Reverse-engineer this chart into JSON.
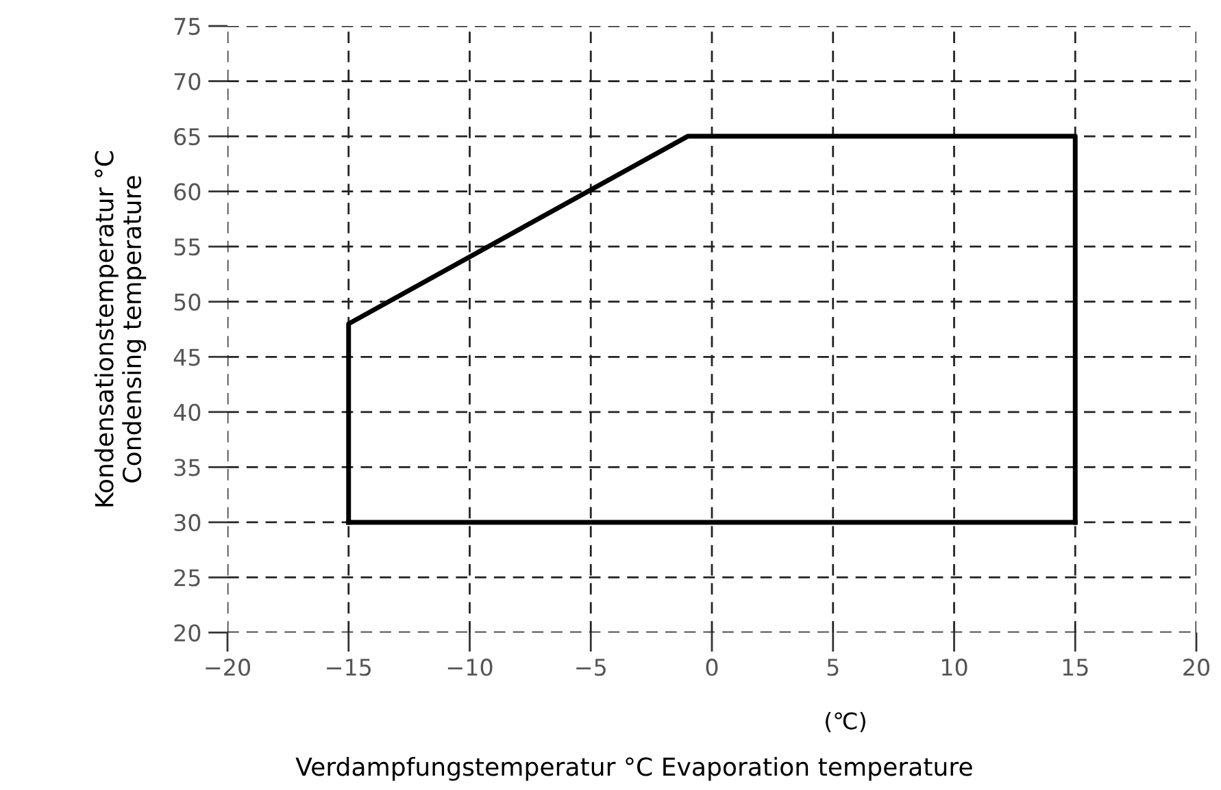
{
  "chart_data": {
    "type": "line",
    "xlabel": "Verdampfungstemperatur °C Evaporation temperature",
    "ylabel": "Kondensationstemperatur °C\nCondensing temperature",
    "annotations": [
      "(℃)"
    ],
    "series": [
      {
        "color": "#000000",
        "x": [
          -15,
          -15,
          -1,
          15,
          15
        ],
        "values": [
          30,
          48,
          65,
          65,
          30
        ]
      },
      {
        "color": "#000000",
        "x": [
          -15,
          15
        ],
        "values": [
          30,
          30
        ]
      }
    ],
    "xlim": [
      -20,
      20
    ],
    "xticks": [
      -20,
      -15,
      -10,
      -5,
      0,
      5,
      10,
      15,
      20
    ],
    "ylim": [
      20,
      75
    ],
    "yticks": [
      20,
      25,
      30,
      35,
      40,
      45,
      50,
      55,
      60,
      65,
      70,
      75
    ],
    "grid": true,
    "legend": false,
    "marker": "none",
    "line_style": "solid"
  }
}
